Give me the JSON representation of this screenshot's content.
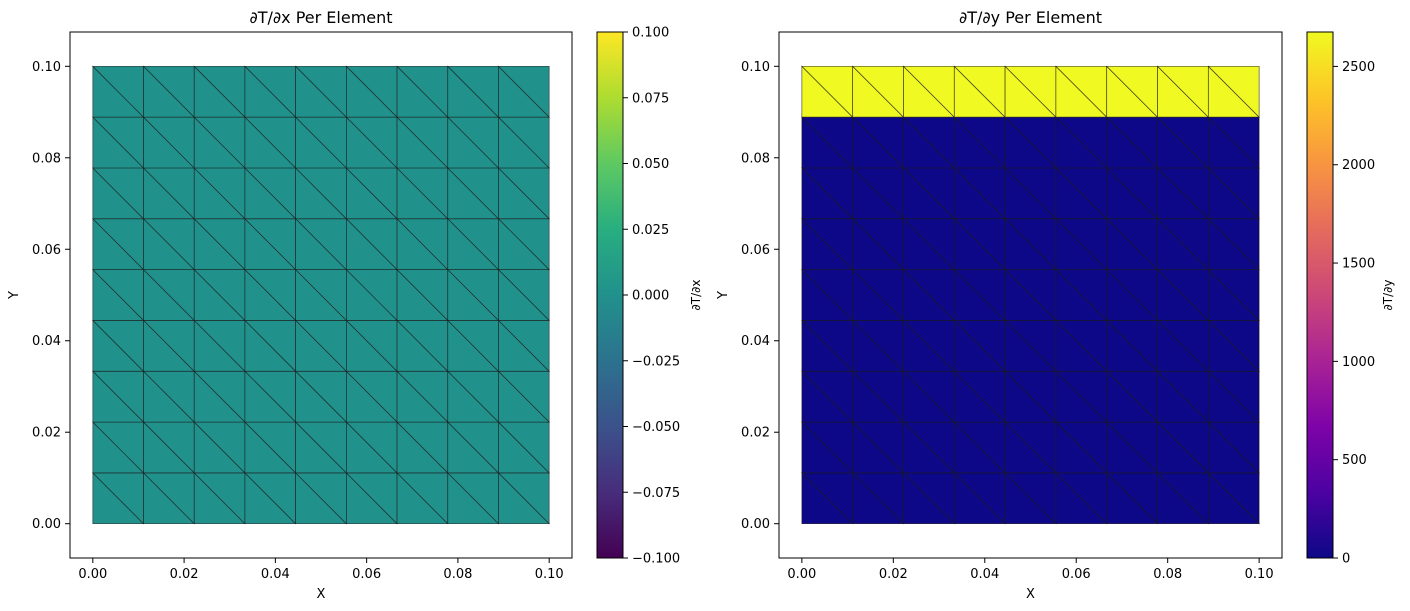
{
  "chart_data": [
    {
      "type": "heatmap",
      "title": "∂T/∂x Per Element",
      "xlabel": "X",
      "ylabel": "Y",
      "xlim": [
        -0.005,
        0.105
      ],
      "ylim": [
        -0.0075,
        0.1075
      ],
      "xticks": [
        0.0,
        0.02,
        0.04,
        0.06,
        0.08,
        0.1
      ],
      "xtick_labels": [
        "0.00",
        "0.02",
        "0.04",
        "0.06",
        "0.08",
        "0.10"
      ],
      "yticks": [
        0.0,
        0.02,
        0.04,
        0.06,
        0.08,
        0.1
      ],
      "ytick_labels": [
        "0.00",
        "0.02",
        "0.04",
        "0.06",
        "0.08",
        "0.10"
      ],
      "mesh": {
        "divisions": 9,
        "x_range": [
          0.0,
          0.1
        ],
        "y_range": [
          0.0,
          0.1
        ],
        "element": "triangle"
      },
      "row_values": [
        0,
        0,
        0,
        0,
        0,
        0,
        0,
        0,
        0
      ],
      "colorbar": {
        "colormap": "viridis",
        "label": "∂T/∂x",
        "range": [
          -0.1,
          0.1
        ],
        "ticks": [
          -0.1,
          -0.075,
          -0.05,
          -0.025,
          0.0,
          0.025,
          0.05,
          0.075,
          0.1
        ],
        "tick_labels": [
          "−0.100",
          "−0.075",
          "−0.050",
          "−0.025",
          "0.000",
          "0.025",
          "0.050",
          "0.075",
          "0.100"
        ]
      }
    },
    {
      "type": "heatmap",
      "title": "∂T/∂y Per Element",
      "xlabel": "X",
      "ylabel": "Y",
      "xlim": [
        -0.005,
        0.105
      ],
      "ylim": [
        -0.0075,
        0.1075
      ],
      "xticks": [
        0.0,
        0.02,
        0.04,
        0.06,
        0.08,
        0.1
      ],
      "xtick_labels": [
        "0.00",
        "0.02",
        "0.04",
        "0.06",
        "0.08",
        "0.10"
      ],
      "yticks": [
        0.0,
        0.02,
        0.04,
        0.06,
        0.08,
        0.1
      ],
      "ytick_labels": [
        "0.00",
        "0.02",
        "0.04",
        "0.06",
        "0.08",
        "0.10"
      ],
      "mesh": {
        "divisions": 9,
        "x_range": [
          0.0,
          0.1
        ],
        "y_range": [
          0.0,
          0.1
        ],
        "element": "triangle"
      },
      "row_values": [
        0,
        0,
        0,
        0,
        0,
        0,
        0,
        0,
        2675
      ],
      "colorbar": {
        "colormap": "plasma",
        "label": "∂T/∂y",
        "range": [
          0,
          2675
        ],
        "ticks": [
          0,
          500,
          1000,
          1500,
          2000,
          2500
        ],
        "tick_labels": [
          "0",
          "500",
          "1000",
          "1500",
          "2000",
          "2500"
        ]
      }
    }
  ]
}
